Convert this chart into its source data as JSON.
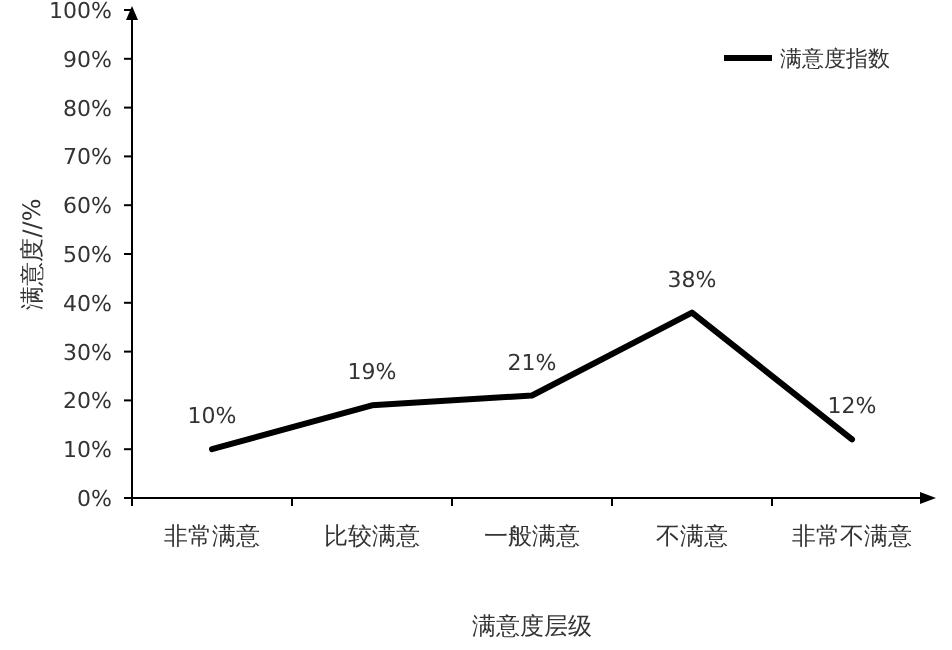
{
  "chart_data": {
    "type": "line",
    "xlabel": "满意度层级",
    "ylabel": "满意度//%",
    "categories": [
      "非常满意",
      "比较满意",
      "一般满意",
      "不满意",
      "非常不满意"
    ],
    "series": [
      {
        "name": "满意度指数",
        "color": "#000000",
        "values": [
          10,
          19,
          21,
          38,
          12
        ],
        "value_labels": [
          "10%",
          "19%",
          "21%",
          "38%",
          "12%"
        ]
      }
    ],
    "ylim": [
      0,
      100
    ],
    "yticks": [
      {
        "value": 0,
        "label": "0%"
      },
      {
        "value": 10,
        "label": "10%"
      },
      {
        "value": 20,
        "label": "20%"
      },
      {
        "value": 30,
        "label": "30%"
      },
      {
        "value": 40,
        "label": "40%"
      },
      {
        "value": 50,
        "label": "50%"
      },
      {
        "value": 60,
        "label": "60%"
      },
      {
        "value": 70,
        "label": "70%"
      },
      {
        "value": 80,
        "label": "80%"
      },
      {
        "value": 90,
        "label": "90%"
      },
      {
        "value": 100,
        "label": "100%"
      }
    ],
    "legend": "top right",
    "marker": "none",
    "line_style": "solid",
    "grid": false
  }
}
